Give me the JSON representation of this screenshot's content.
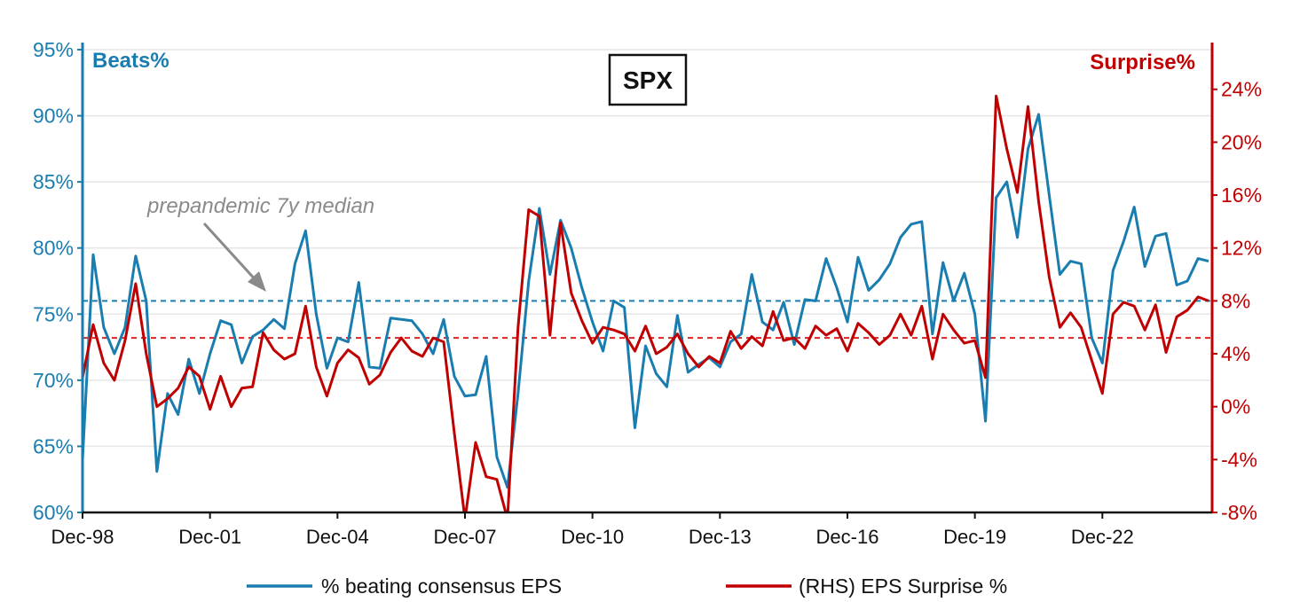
{
  "chart_data": {
    "type": "line",
    "title": "SPX",
    "left_axis": {
      "label": "Beats%",
      "range": [
        60,
        95
      ],
      "ticks": [
        60,
        65,
        70,
        75,
        80,
        85,
        90,
        95
      ],
      "tick_labels": [
        "60%",
        "65%",
        "70%",
        "75%",
        "80%",
        "85%",
        "90%",
        "95%"
      ],
      "color": "#1a7db0"
    },
    "right_axis": {
      "label": "Surprise%",
      "range": [
        -8,
        27
      ],
      "ticks": [
        -8,
        -4,
        0,
        4,
        8,
        12,
        16,
        20,
        24
      ],
      "tick_labels": [
        "-8%",
        "-4%",
        "0%",
        "4%",
        "8%",
        "12%",
        "16%",
        "20%",
        "24%"
      ],
      "color": "#c00000"
    },
    "x_axis": {
      "start": 1998.917,
      "end": 2025.5,
      "ticks": [
        1998.917,
        2001.917,
        2004.917,
        2007.917,
        2010.917,
        2013.917,
        2016.917,
        2019.917,
        2022.917
      ],
      "tick_labels": [
        "Dec-98",
        "Dec-01",
        "Dec-04",
        "Dec-07",
        "Dec-10",
        "Dec-13",
        "Dec-16",
        "Dec-19",
        "Dec-22"
      ]
    },
    "grid": true,
    "legend_position": "bottom",
    "annotation": {
      "text": "prepandemic 7y median"
    },
    "reference_lines": [
      {
        "series": "% beating consensus EPS",
        "axis": "left",
        "value": 76,
        "style": "dashed",
        "color": "#1a7db0"
      },
      {
        "series": "(RHS) EPS Surprise %",
        "axis": "right",
        "value": 5.2,
        "style": "dashed",
        "color": "#e02020"
      }
    ],
    "series": [
      {
        "name": "% beating consensus EPS",
        "axis": "left",
        "color": "#1a7db0",
        "x": [
          1998.917,
          1999.167,
          1999.417,
          1999.667,
          1999.917,
          2000.167,
          2000.417,
          2000.667,
          2000.917,
          2001.167,
          2001.417,
          2001.667,
          2001.917,
          2002.167,
          2002.417,
          2002.667,
          2002.917,
          2003.167,
          2003.417,
          2003.667,
          2003.917,
          2004.167,
          2004.417,
          2004.667,
          2004.917,
          2005.167,
          2005.417,
          2005.667,
          2005.917,
          2006.167,
          2006.417,
          2006.667,
          2006.917,
          2007.167,
          2007.417,
          2007.667,
          2007.917,
          2008.167,
          2008.417,
          2008.667,
          2008.917,
          2009.167,
          2009.417,
          2009.667,
          2009.917,
          2010.167,
          2010.417,
          2010.667,
          2010.917,
          2011.167,
          2011.417,
          2011.667,
          2011.917,
          2012.167,
          2012.417,
          2012.667,
          2012.917,
          2013.167,
          2013.417,
          2013.667,
          2013.917,
          2014.167,
          2014.417,
          2014.667,
          2014.917,
          2015.167,
          2015.417,
          2015.667,
          2015.917,
          2016.167,
          2016.417,
          2016.667,
          2016.917,
          2017.167,
          2017.417,
          2017.667,
          2017.917,
          2018.167,
          2018.417,
          2018.667,
          2018.917,
          2019.167,
          2019.417,
          2019.667,
          2019.917,
          2020.167,
          2020.417,
          2020.667,
          2020.917,
          2021.167,
          2021.417,
          2021.667,
          2021.917,
          2022.167,
          2022.417,
          2022.667,
          2022.917,
          2023.167,
          2023.417,
          2023.667,
          2023.917,
          2024.167,
          2024.417,
          2024.667,
          2024.917,
          2025.167,
          2025.417
        ],
        "values": [
          64.0,
          79.5,
          74.0,
          72.0,
          74.0,
          79.4,
          76.0,
          63.1,
          69.0,
          67.4,
          71.6,
          69.0,
          72.0,
          74.5,
          74.2,
          71.3,
          73.3,
          73.8,
          74.6,
          73.9,
          78.8,
          81.3,
          75.0,
          70.9,
          73.2,
          72.9,
          77.4,
          71.0,
          70.9,
          74.7,
          74.6,
          74.5,
          73.5,
          72.0,
          74.6,
          70.3,
          68.8,
          68.9,
          71.8,
          64.2,
          61.9,
          69.0,
          77.5,
          83.0,
          78.0,
          82.1,
          80.0,
          77.0,
          74.4,
          72.2,
          76.0,
          75.5,
          66.4,
          72.6,
          70.5,
          69.5,
          74.9,
          70.6,
          71.2,
          71.7,
          71.0,
          72.9,
          73.5,
          78.0,
          74.4,
          73.8,
          75.9,
          72.7,
          76.1,
          76.0,
          79.2,
          77.0,
          74.4,
          79.3,
          76.8,
          77.6,
          78.8,
          80.8,
          81.8,
          82.0,
          73.5,
          78.9,
          76.0,
          78.1,
          75.0,
          66.9,
          83.8,
          85.0,
          80.8,
          87.5,
          90.1,
          84.0,
          78.0,
          79.0,
          78.8,
          73.2,
          71.3,
          78.3,
          80.5,
          83.1,
          78.6,
          80.9,
          81.1,
          77.2,
          77.5,
          79.2,
          79.0
        ]
      },
      {
        "name": "(RHS) EPS Surprise %",
        "axis": "right",
        "color": "#c00000",
        "x": [
          1998.917,
          1999.167,
          1999.417,
          1999.667,
          1999.917,
          2000.167,
          2000.417,
          2000.667,
          2000.917,
          2001.167,
          2001.417,
          2001.667,
          2001.917,
          2002.167,
          2002.417,
          2002.667,
          2002.917,
          2003.167,
          2003.417,
          2003.667,
          2003.917,
          2004.167,
          2004.417,
          2004.667,
          2004.917,
          2005.167,
          2005.417,
          2005.667,
          2005.917,
          2006.167,
          2006.417,
          2006.667,
          2006.917,
          2007.167,
          2007.417,
          2007.667,
          2007.917,
          2008.167,
          2008.417,
          2008.667,
          2008.917,
          2009.167,
          2009.417,
          2009.667,
          2009.917,
          2010.167,
          2010.417,
          2010.667,
          2010.917,
          2011.167,
          2011.417,
          2011.667,
          2011.917,
          2012.167,
          2012.417,
          2012.667,
          2012.917,
          2013.167,
          2013.417,
          2013.667,
          2013.917,
          2014.167,
          2014.417,
          2014.667,
          2014.917,
          2015.167,
          2015.417,
          2015.667,
          2015.917,
          2016.167,
          2016.417,
          2016.667,
          2016.917,
          2017.167,
          2017.417,
          2017.667,
          2017.917,
          2018.167,
          2018.417,
          2018.667,
          2018.917,
          2019.167,
          2019.417,
          2019.667,
          2019.917,
          2020.167,
          2020.417,
          2020.667,
          2020.917,
          2021.167,
          2021.417,
          2021.667,
          2021.917,
          2022.167,
          2022.417,
          2022.667,
          2022.917,
          2023.167,
          2023.417,
          2023.667,
          2023.917,
          2024.167,
          2024.417,
          2024.667,
          2024.917,
          2025.167,
          2025.417
        ],
        "values": [
          2.2,
          6.2,
          3.3,
          2.0,
          5.0,
          9.3,
          4.0,
          0.0,
          0.6,
          1.4,
          3.0,
          2.3,
          -0.2,
          2.3,
          0.0,
          1.4,
          1.5,
          5.6,
          4.3,
          3.6,
          4.0,
          7.6,
          3.0,
          0.8,
          3.3,
          4.3,
          3.7,
          1.7,
          2.4,
          4.1,
          5.2,
          4.2,
          3.8,
          5.2,
          4.9,
          -2.0,
          -8.5,
          -2.7,
          -5.3,
          -5.5,
          -8.5,
          6.0,
          14.9,
          14.4,
          5.4,
          13.9,
          8.6,
          6.5,
          4.8,
          6.0,
          5.8,
          5.5,
          4.2,
          6.1,
          4.0,
          4.5,
          5.5,
          4.0,
          3.0,
          3.8,
          3.3,
          5.7,
          4.4,
          5.3,
          4.6,
          7.2,
          5.0,
          5.2,
          4.4,
          6.1,
          5.4,
          5.9,
          4.2,
          6.3,
          5.6,
          4.7,
          5.4,
          7.0,
          5.4,
          7.6,
          3.6,
          7.0,
          5.8,
          4.8,
          5.0,
          2.2,
          23.5,
          19.5,
          16.2,
          22.7,
          15.5,
          9.8,
          6.0,
          7.1,
          6.0,
          3.5,
          1.0,
          7.0,
          7.9,
          7.6,
          5.8,
          7.7,
          4.1,
          6.8,
          7.3,
          8.3,
          8.0
        ]
      }
    ]
  }
}
